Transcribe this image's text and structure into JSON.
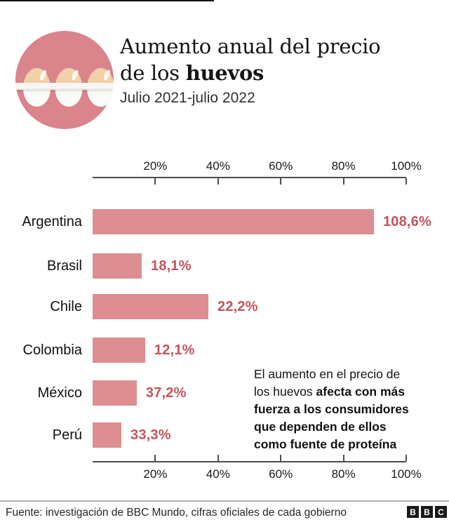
{
  "header": {
    "title_line1": "Aumento anual del precio",
    "title_line2_regular": "de los ",
    "title_line2_bold": "huevos",
    "subtitle": "Julio 2021-julio 2022",
    "icon": "egg-carton-icon",
    "icon_circle_color": "#D9858B",
    "egg_color": "#F3D0A8"
  },
  "chart_data": {
    "type": "bar",
    "orientation": "horizontal",
    "title": "Aumento anual del precio de los huevos",
    "subtitle": "Julio 2021-julio 2022",
    "categories": [
      "Argentina",
      "Brasil",
      "Chile",
      "Colombia",
      "México",
      "Perú"
    ],
    "values": [
      108.6,
      18.1,
      22.2,
      12.1,
      37.2,
      33.3
    ],
    "value_labels": [
      "108,6%",
      "18,1%",
      "22,2%",
      "12,1%",
      "37,2%",
      "33,3%"
    ],
    "bar_display_pct": [
      89.9,
      15.7,
      37.0,
      16.8,
      14.1,
      9.2
    ],
    "axis_ticks": [
      "20%",
      "40%",
      "60%",
      "80%",
      "100%"
    ],
    "axis_tick_values": [
      20,
      40,
      60,
      80,
      100
    ],
    "xlim": [
      0,
      100
    ],
    "grid": false,
    "axis_position": "top and bottom",
    "bar_color": "#DC8E91",
    "label_color": "#C4545C"
  },
  "annotation": {
    "lines": [
      {
        "regular": "El aumento en el precio de",
        "bold": ""
      },
      {
        "regular": "los huevos ",
        "bold": "afecta con más"
      },
      {
        "regular": "",
        "bold": "fuerza a los consumidores"
      },
      {
        "regular": "",
        "bold": "que dependen de ellos"
      },
      {
        "regular": "",
        "bold": "como fuente de proteína"
      }
    ]
  },
  "footer": {
    "source": "Fuente: investigación de BBC Mundo, cifras oficiales de cada gobierno",
    "logo_letters": [
      "B",
      "B",
      "C"
    ]
  }
}
